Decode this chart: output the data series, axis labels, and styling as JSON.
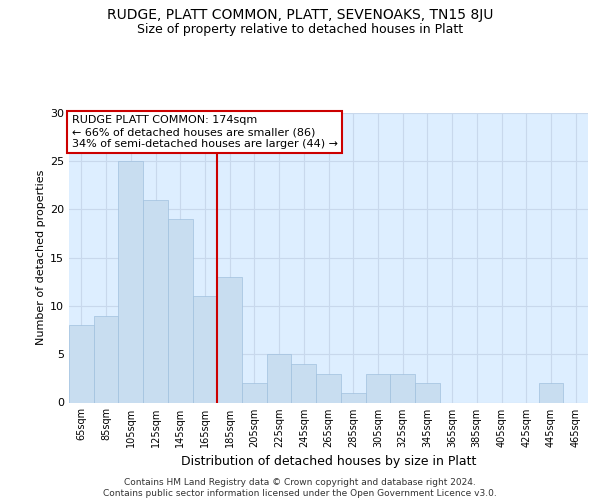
{
  "title": "RUDGE, PLATT COMMON, PLATT, SEVENOAKS, TN15 8JU",
  "subtitle": "Size of property relative to detached houses in Platt",
  "xlabel": "Distribution of detached houses by size in Platt",
  "ylabel": "Number of detached properties",
  "categories": [
    "65sqm",
    "85sqm",
    "105sqm",
    "125sqm",
    "145sqm",
    "165sqm",
    "185sqm",
    "205sqm",
    "225sqm",
    "245sqm",
    "265sqm",
    "285sqm",
    "305sqm",
    "325sqm",
    "345sqm",
    "365sqm",
    "385sqm",
    "405sqm",
    "425sqm",
    "445sqm",
    "465sqm"
  ],
  "values": [
    8,
    9,
    25,
    21,
    19,
    11,
    13,
    2,
    5,
    4,
    3,
    1,
    3,
    3,
    2,
    0,
    0,
    0,
    0,
    2,
    0
  ],
  "bar_color": "#c8ddf0",
  "bar_edge_color": "#a0c0de",
  "vline_color": "#cc0000",
  "vline_idx": 5.5,
  "annotation_line1": "RUDGE PLATT COMMON: 174sqm",
  "annotation_line2": "← 66% of detached houses are smaller (86)",
  "annotation_line3": "34% of semi-detached houses are larger (44) →",
  "annotation_box_edgecolor": "#cc0000",
  "annotation_bg_color": "#ffffff",
  "ylim": [
    0,
    30
  ],
  "yticks": [
    0,
    5,
    10,
    15,
    20,
    25,
    30
  ],
  "grid_color": "#c8d8ec",
  "bg_color": "#ddeeff",
  "footer_line1": "Contains HM Land Registry data © Crown copyright and database right 2024.",
  "footer_line2": "Contains public sector information licensed under the Open Government Licence v3.0."
}
